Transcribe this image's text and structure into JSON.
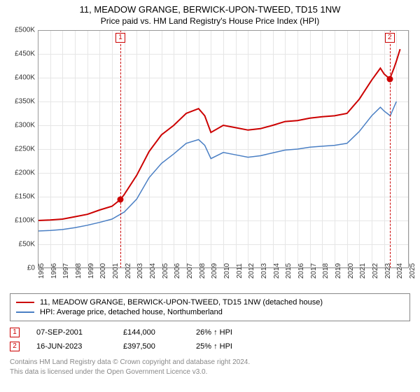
{
  "title": "11, MEADOW GRANGE, BERWICK-UPON-TWEED, TD15 1NW",
  "subtitle": "Price paid vs. HM Land Registry's House Price Index (HPI)",
  "chart": {
    "type": "line",
    "background_color": "#ffffff",
    "grid_color": "#e6e6e6",
    "border_color": "#999999",
    "xlim": [
      1995,
      2025
    ],
    "ylim": [
      0,
      500000
    ],
    "ytick_step": 50000,
    "yticks": [
      {
        "v": 0,
        "label": "£0"
      },
      {
        "v": 50000,
        "label": "£50K"
      },
      {
        "v": 100000,
        "label": "£100K"
      },
      {
        "v": 150000,
        "label": "£150K"
      },
      {
        "v": 200000,
        "label": "£200K"
      },
      {
        "v": 250000,
        "label": "£250K"
      },
      {
        "v": 300000,
        "label": "£300K"
      },
      {
        "v": 350000,
        "label": "£350K"
      },
      {
        "v": 400000,
        "label": "£400K"
      },
      {
        "v": 450000,
        "label": "£450K"
      },
      {
        "v": 500000,
        "label": "£500K"
      }
    ],
    "xticks": [
      1995,
      1996,
      1997,
      1998,
      1999,
      2000,
      2001,
      2002,
      2003,
      2004,
      2005,
      2006,
      2007,
      2008,
      2009,
      2010,
      2011,
      2012,
      2013,
      2014,
      2015,
      2016,
      2017,
      2018,
      2019,
      2020,
      2021,
      2022,
      2023,
      2024,
      2025
    ],
    "label_fontsize": 10,
    "series": [
      {
        "name": "11, MEADOW GRANGE, BERWICK-UPON-TWEED, TD15 1NW (detached house)",
        "color": "#cc0000",
        "line_width": 2,
        "data": [
          [
            1995,
            100000
          ],
          [
            1996,
            101000
          ],
          [
            1997,
            103000
          ],
          [
            1998,
            108000
          ],
          [
            1999,
            113000
          ],
          [
            2000,
            122000
          ],
          [
            2001,
            130000
          ],
          [
            2001.68,
            144000
          ],
          [
            2002,
            155000
          ],
          [
            2003,
            195000
          ],
          [
            2004,
            245000
          ],
          [
            2005,
            280000
          ],
          [
            2006,
            300000
          ],
          [
            2007,
            325000
          ],
          [
            2008,
            335000
          ],
          [
            2008.5,
            320000
          ],
          [
            2009,
            285000
          ],
          [
            2010,
            300000
          ],
          [
            2011,
            295000
          ],
          [
            2012,
            290000
          ],
          [
            2013,
            293000
          ],
          [
            2014,
            300000
          ],
          [
            2015,
            308000
          ],
          [
            2016,
            310000
          ],
          [
            2017,
            315000
          ],
          [
            2018,
            318000
          ],
          [
            2019,
            320000
          ],
          [
            2020,
            325000
          ],
          [
            2021,
            355000
          ],
          [
            2022,
            395000
          ],
          [
            2022.7,
            420000
          ],
          [
            2023,
            408000
          ],
          [
            2023.46,
            397500
          ],
          [
            2023.8,
            420000
          ],
          [
            2024,
            435000
          ],
          [
            2024.3,
            460000
          ]
        ]
      },
      {
        "name": "HPI: Average price, detached house, Northumberland",
        "color": "#4a7fc4",
        "line_width": 1.5,
        "data": [
          [
            1995,
            78000
          ],
          [
            1996,
            79000
          ],
          [
            1997,
            81000
          ],
          [
            1998,
            85000
          ],
          [
            1999,
            90000
          ],
          [
            2000,
            96000
          ],
          [
            2001,
            103000
          ],
          [
            2002,
            118000
          ],
          [
            2003,
            145000
          ],
          [
            2004,
            190000
          ],
          [
            2005,
            220000
          ],
          [
            2006,
            240000
          ],
          [
            2007,
            262000
          ],
          [
            2008,
            270000
          ],
          [
            2008.5,
            258000
          ],
          [
            2009,
            230000
          ],
          [
            2010,
            243000
          ],
          [
            2011,
            238000
          ],
          [
            2012,
            233000
          ],
          [
            2013,
            236000
          ],
          [
            2014,
            242000
          ],
          [
            2015,
            248000
          ],
          [
            2016,
            250000
          ],
          [
            2017,
            254000
          ],
          [
            2018,
            256000
          ],
          [
            2019,
            258000
          ],
          [
            2020,
            262000
          ],
          [
            2021,
            287000
          ],
          [
            2022,
            320000
          ],
          [
            2022.7,
            338000
          ],
          [
            2023,
            330000
          ],
          [
            2023.5,
            320000
          ],
          [
            2024,
            350000
          ]
        ]
      }
    ],
    "markers": [
      {
        "n": "1",
        "x": 2001.68,
        "y": 144000,
        "color": "#cc0000"
      },
      {
        "n": "2",
        "x": 2023.46,
        "y": 397500,
        "color": "#cc0000"
      }
    ],
    "marker_dash_color": "#cc0000",
    "marker_dot_color": "#cc0000"
  },
  "legend": {
    "items": [
      {
        "color": "#cc0000",
        "label": "11, MEADOW GRANGE, BERWICK-UPON-TWEED, TD15 1NW (detached house)"
      },
      {
        "color": "#4a7fc4",
        "label": "HPI: Average price, detached house, Northumberland"
      }
    ]
  },
  "transactions": [
    {
      "n": "1",
      "color": "#cc0000",
      "date": "07-SEP-2001",
      "price": "£144,000",
      "hpi": "26% ↑ HPI"
    },
    {
      "n": "2",
      "color": "#cc0000",
      "date": "16-JUN-2023",
      "price": "£397,500",
      "hpi": "25% ↑ HPI"
    }
  ],
  "footer": {
    "line1": "Contains HM Land Registry data © Crown copyright and database right 2024.",
    "line2": "This data is licensed under the Open Government Licence v3.0."
  }
}
